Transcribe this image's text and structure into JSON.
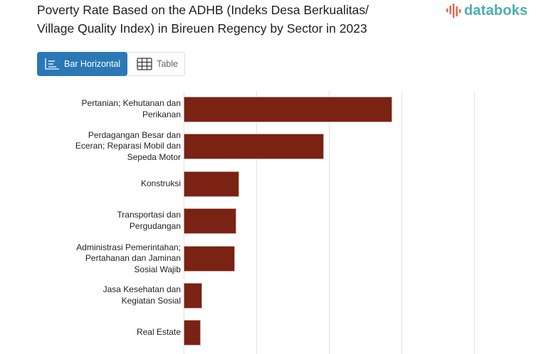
{
  "header": {
    "title": "Poverty Rate Based on the ADHB (Indeks Desa Berkualitas/ Village Quality Index) in Bireuen Regency by Sector in 2023"
  },
  "logo": {
    "text": "databoks",
    "icon": "databoks-bars-icon",
    "text_color": "#4aaeb1",
    "icon_color": "#e5634d"
  },
  "view_toggle": {
    "options": [
      {
        "label": "Bar Horizontal",
        "icon": "bar-horizontal-icon",
        "active": true
      },
      {
        "label": "Table",
        "icon": "table-grid-icon",
        "active": false
      }
    ],
    "active_color": "#2b78b7"
  },
  "colors": {
    "bar": "#7a2214",
    "gridline": "#e3e3e3"
  },
  "chart_data": {
    "type": "bar",
    "orientation": "horizontal",
    "title": "Poverty Rate Based on the ADHB (Indeks Desa Berkualitas/ Village Quality Index) in Bireuen Regency by Sector in 2023",
    "categories": [
      "Pertanian; Kehutanan dan Perikanan",
      "Perdagangan Besar dan Eceran; Reparasi Mobil dan Sepeda Motor",
      "Konstruksi",
      "Transportasi dan Pergudangan",
      "Administrasi Pemerintahan; Pertahanan dan Jaminan Sosial Wajib",
      "Jasa Kesehatan dan Kegiatan Sosial",
      "Real Estate"
    ],
    "category_lines": [
      [
        "Pertanian; Kehutanan dan",
        "Perikanan"
      ],
      [
        "Perdagangan Besar dan",
        "Eceran; Reparasi Mobil dan",
        "Sepeda Motor"
      ],
      [
        "Konstruksi"
      ],
      [
        "Transportasi dan",
        "Pergudangan"
      ],
      [
        "Administrasi Pemerintahan;",
        "Pertahanan dan Jaminan",
        "Sosial Wajib"
      ],
      [
        "Jasa Kesehatan dan",
        "Kegiatan Sosial"
      ],
      [
        "Real Estate"
      ]
    ],
    "values": [
      2.87,
      1.93,
      0.76,
      0.73,
      0.71,
      0.25,
      0.24
    ],
    "value_units_note": "relative to gridline spacing; axis tick labels not shown",
    "xlabel": "",
    "ylabel": "",
    "xlim": [
      0,
      4
    ],
    "gridlines": [
      1,
      2,
      3,
      4
    ],
    "grid": true,
    "legend": null
  }
}
